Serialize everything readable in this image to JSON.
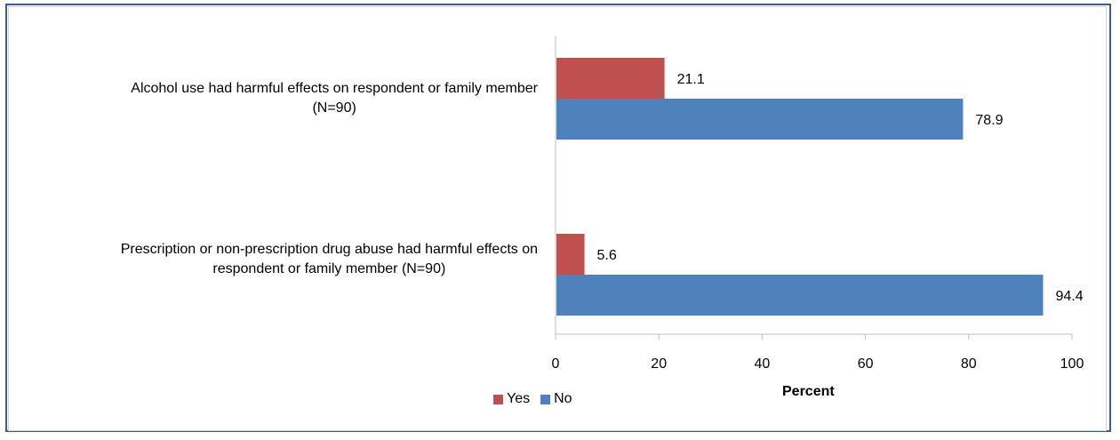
{
  "chart_data": {
    "type": "bar",
    "orientation": "horizontal",
    "categories": [
      "Alcohol use had harmful effects on respondent or family member (N=90)",
      "Prescription or non-prescription drug abuse had harmful effects on respondent or family member (N=90)"
    ],
    "category_lines": [
      [
        "Alcohol use had harmful effects on respondent or family member",
        "(N=90)"
      ],
      [
        "Prescription or non-prescription drug abuse had harmful effects on",
        "respondent or family member (N=90)"
      ]
    ],
    "series": [
      {
        "name": "Yes",
        "values": [
          21.1,
          5.6
        ],
        "color": "#c0504d"
      },
      {
        "name": "No",
        "values": [
          78.9,
          94.4
        ],
        "color": "#4f81bd"
      }
    ],
    "data_labels": [
      [
        "21.1",
        "5.6"
      ],
      [
        "78.9",
        "94.4"
      ]
    ],
    "xlabel": "Percent",
    "xlim": [
      0,
      100
    ],
    "xticks": [
      "0",
      "20",
      "40",
      "60",
      "80",
      "100"
    ],
    "legend_position": "bottom",
    "grid": false
  }
}
